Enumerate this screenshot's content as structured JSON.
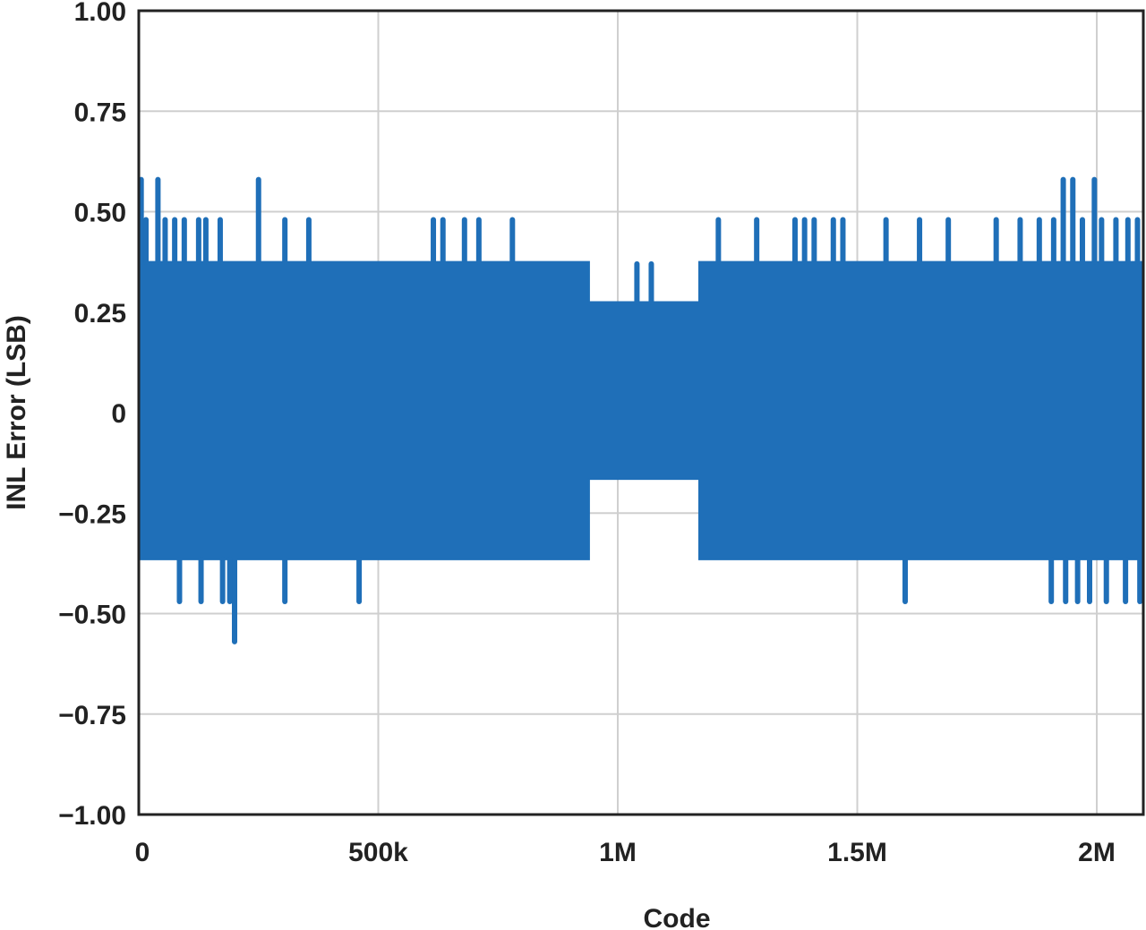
{
  "chart_data": {
    "type": "line",
    "title": "",
    "xlabel": "Code",
    "ylabel": "INL Error (LSB)",
    "xlim": [
      0,
      2097152
    ],
    "ylim": [
      -1.0,
      1.0
    ],
    "grid": true,
    "x_ticks": [
      {
        "value": 0,
        "label": "0"
      },
      {
        "value": 500000,
        "label": "500k"
      },
      {
        "value": 1000000,
        "label": "1M"
      },
      {
        "value": 1500000,
        "label": "1.5M"
      },
      {
        "value": 2000000,
        "label": "2M"
      }
    ],
    "y_ticks": [
      {
        "value": 1.0,
        "label": "1.00"
      },
      {
        "value": 0.75,
        "label": "0.75"
      },
      {
        "value": 0.5,
        "label": "0.50"
      },
      {
        "value": 0.25,
        "label": "0.25"
      },
      {
        "value": 0,
        "label": "0"
      },
      {
        "value": -0.25,
        "label": "−0.25"
      },
      {
        "value": -0.5,
        "label": "−0.50"
      },
      {
        "value": -0.75,
        "label": "−0.75"
      },
      {
        "value": -1.0,
        "label": "−1.00"
      }
    ],
    "series": [
      {
        "color": "#1f6fb8",
        "envelope": {
          "x": [
            0,
            940000,
            940001,
            1170000,
            1170001,
            2097152
          ],
          "upper": [
            0.375,
            0.375,
            0.275,
            0.275,
            0.375,
            0.375
          ],
          "lower": [
            -0.365,
            -0.365,
            -0.165,
            -0.165,
            -0.365,
            -0.365
          ]
        },
        "spikes": [
          {
            "x": 5000,
            "y": 0.58
          },
          {
            "x": 15000,
            "y": 0.48
          },
          {
            "x": 40000,
            "y": 0.58
          },
          {
            "x": 55000,
            "y": 0.48
          },
          {
            "x": 75000,
            "y": 0.48
          },
          {
            "x": 95000,
            "y": 0.48
          },
          {
            "x": 125000,
            "y": 0.48
          },
          {
            "x": 140000,
            "y": 0.48
          },
          {
            "x": 170000,
            "y": 0.48
          },
          {
            "x": 250000,
            "y": 0.58
          },
          {
            "x": 305000,
            "y": 0.48
          },
          {
            "x": 355000,
            "y": 0.48
          },
          {
            "x": 615000,
            "y": 0.48
          },
          {
            "x": 635000,
            "y": 0.48
          },
          {
            "x": 680000,
            "y": 0.48
          },
          {
            "x": 710000,
            "y": 0.48
          },
          {
            "x": 780000,
            "y": 0.48
          },
          {
            "x": 1040000,
            "y": 0.37
          },
          {
            "x": 1070000,
            "y": 0.37
          },
          {
            "x": 1210000,
            "y": 0.48
          },
          {
            "x": 1290000,
            "y": 0.48
          },
          {
            "x": 1370000,
            "y": 0.48
          },
          {
            "x": 1390000,
            "y": 0.48
          },
          {
            "x": 1410000,
            "y": 0.48
          },
          {
            "x": 1450000,
            "y": 0.48
          },
          {
            "x": 1470000,
            "y": 0.48
          },
          {
            "x": 1560000,
            "y": 0.48
          },
          {
            "x": 1630000,
            "y": 0.48
          },
          {
            "x": 1690000,
            "y": 0.48
          },
          {
            "x": 1790000,
            "y": 0.48
          },
          {
            "x": 1840000,
            "y": 0.48
          },
          {
            "x": 1880000,
            "y": 0.48
          },
          {
            "x": 1910000,
            "y": 0.48
          },
          {
            "x": 1930000,
            "y": 0.58
          },
          {
            "x": 1950000,
            "y": 0.58
          },
          {
            "x": 1970000,
            "y": 0.48
          },
          {
            "x": 1995000,
            "y": 0.58
          },
          {
            "x": 2010000,
            "y": 0.48
          },
          {
            "x": 2040000,
            "y": 0.48
          },
          {
            "x": 2065000,
            "y": 0.48
          },
          {
            "x": 2085000,
            "y": 0.48
          },
          {
            "x": 85000,
            "y": -0.47
          },
          {
            "x": 130000,
            "y": -0.47
          },
          {
            "x": 175000,
            "y": -0.47
          },
          {
            "x": 190000,
            "y": -0.47
          },
          {
            "x": 200000,
            "y": -0.57
          },
          {
            "x": 305000,
            "y": -0.47
          },
          {
            "x": 460000,
            "y": -0.47
          },
          {
            "x": 1600000,
            "y": -0.47
          },
          {
            "x": 1905000,
            "y": -0.47
          },
          {
            "x": 1935000,
            "y": -0.47
          },
          {
            "x": 1960000,
            "y": -0.47
          },
          {
            "x": 1985000,
            "y": -0.47
          },
          {
            "x": 2020000,
            "y": -0.47
          },
          {
            "x": 2060000,
            "y": -0.47
          },
          {
            "x": 2090000,
            "y": -0.47
          }
        ]
      }
    ]
  }
}
